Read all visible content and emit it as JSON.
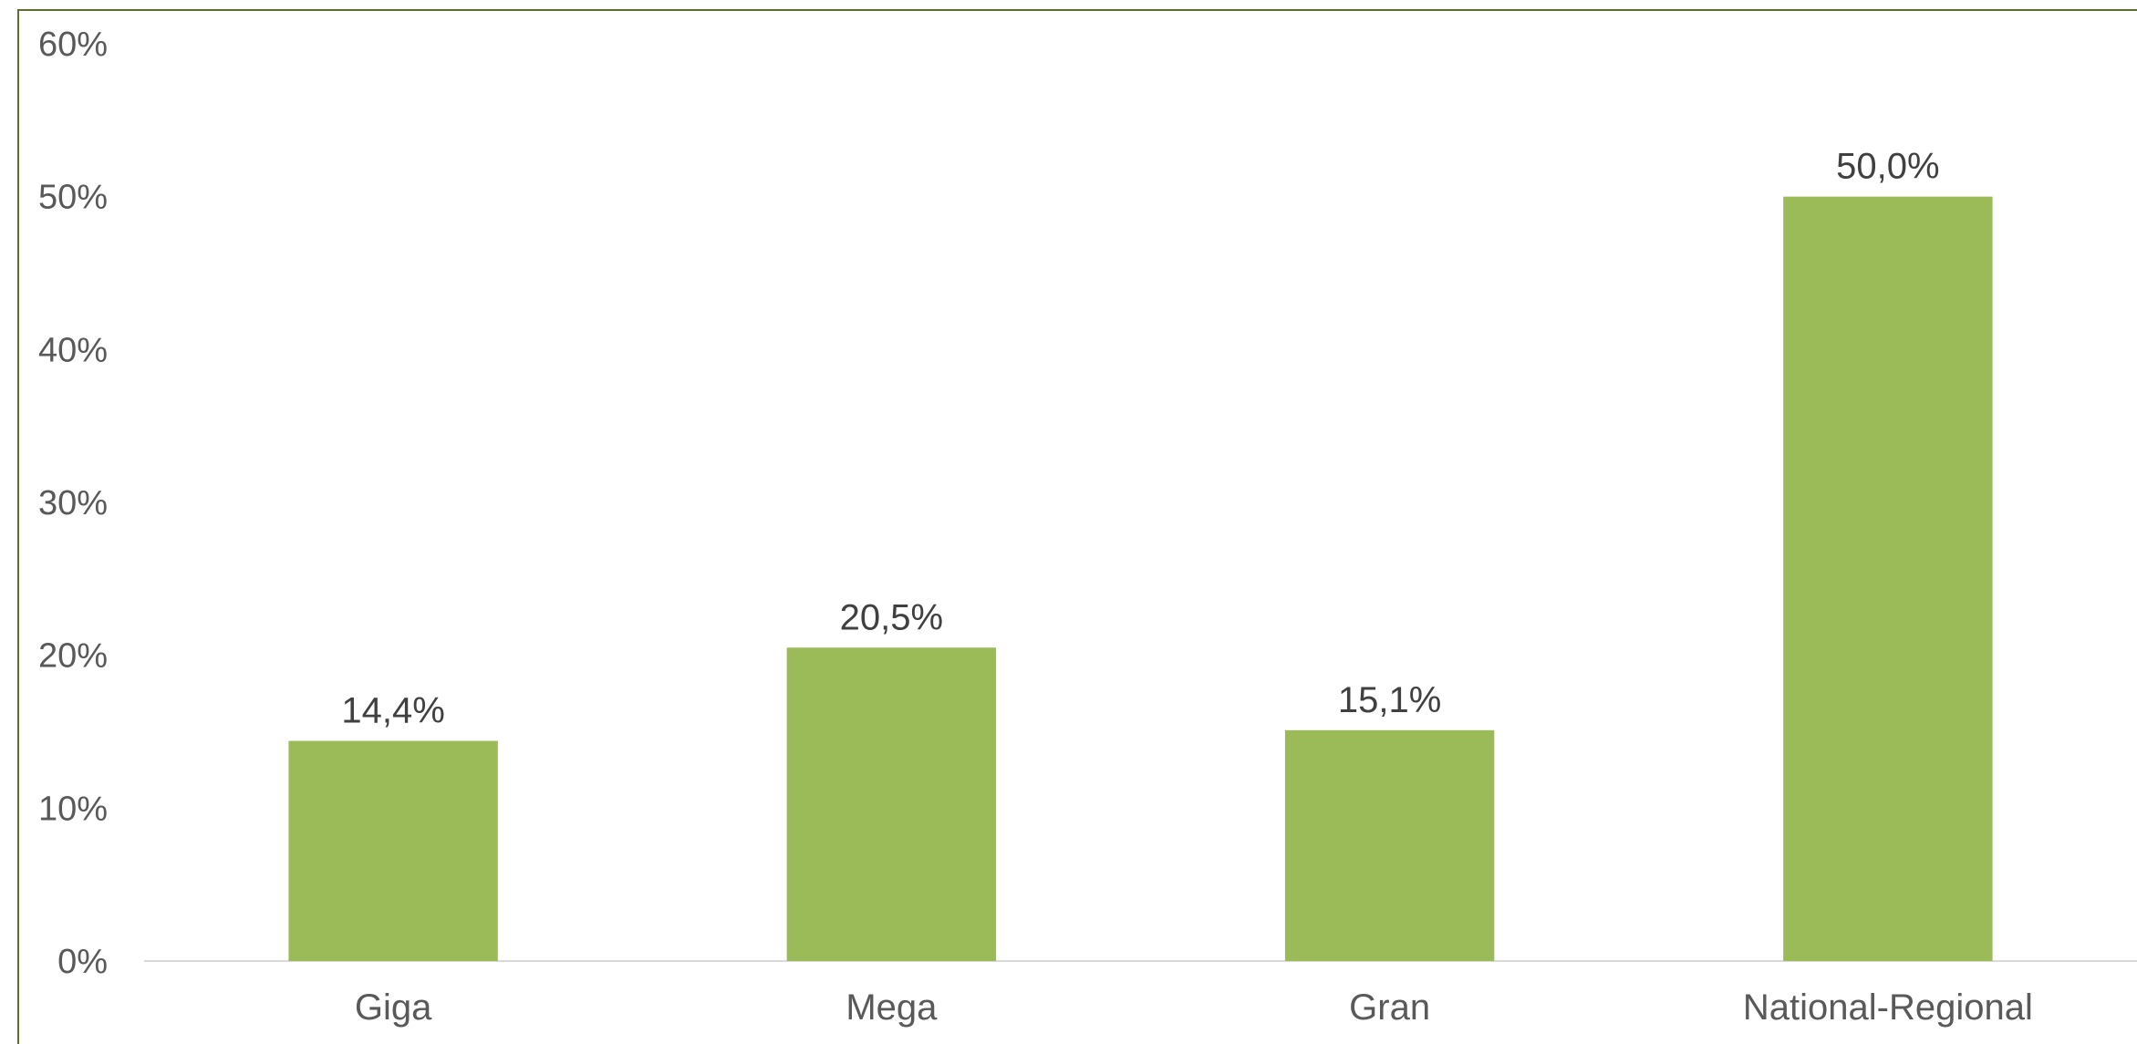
{
  "chart_data": {
    "type": "bar",
    "categories": [
      "Giga",
      "Mega",
      "Gran",
      "National-Regional"
    ],
    "values": [
      14.4,
      20.5,
      15.1,
      50.0
    ],
    "data_labels": [
      "14,4%",
      "20,5%",
      "15,1%",
      "50,0%"
    ],
    "y_ticks": [
      "0%",
      "10%",
      "20%",
      "30%",
      "40%",
      "50%",
      "60%"
    ],
    "ylim": [
      0,
      60
    ],
    "bar_color": "#9bbb59",
    "grid": false,
    "legend": "none"
  }
}
